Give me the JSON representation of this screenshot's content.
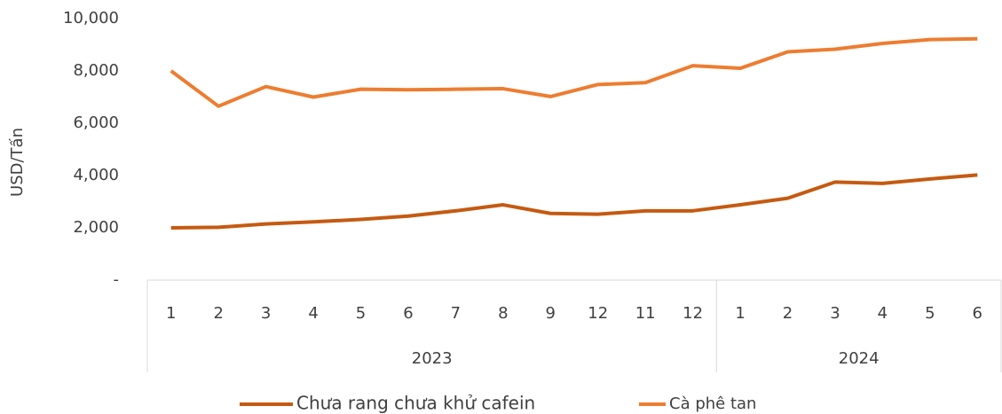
{
  "chart_data": {
    "type": "line",
    "y_label": "USD/Tấn",
    "categories": [
      "1",
      "2",
      "3",
      "4",
      "5",
      "6",
      "7",
      "8",
      "9",
      "12",
      "11",
      "12",
      "1",
      "2",
      "3",
      "4",
      "5",
      "6"
    ],
    "groups": [
      {
        "name": "2023",
        "span": 12
      },
      {
        "name": "2024",
        "span": 6
      }
    ],
    "series": [
      {
        "name": "Chưa rang chưa khử cafein",
        "color": "#c55a11",
        "values": [
          2000,
          2020,
          2150,
          2230,
          2320,
          2450,
          2650,
          2880,
          2550,
          2520,
          2650,
          2650,
          2880,
          3130,
          3750,
          3700,
          3870,
          4020
        ]
      },
      {
        "name": "Cà phê tan",
        "color": "#ed7d31",
        "values": [
          8000,
          6650,
          7400,
          7000,
          7300,
          7280,
          7300,
          7320,
          7020,
          7480,
          7550,
          8200,
          8100,
          8730,
          8830,
          9050,
          9200,
          9230
        ]
      }
    ],
    "ylim": [
      0,
      10000
    ],
    "yticks": [
      {
        "value": 0,
        "label": "-"
      },
      {
        "value": 2000,
        "label": "2,000"
      },
      {
        "value": 4000,
        "label": "4,000"
      },
      {
        "value": 6000,
        "label": "6,000"
      },
      {
        "value": 8000,
        "label": "8,000"
      },
      {
        "value": 10000,
        "label": "10,000"
      }
    ],
    "legend": "bottom"
  }
}
